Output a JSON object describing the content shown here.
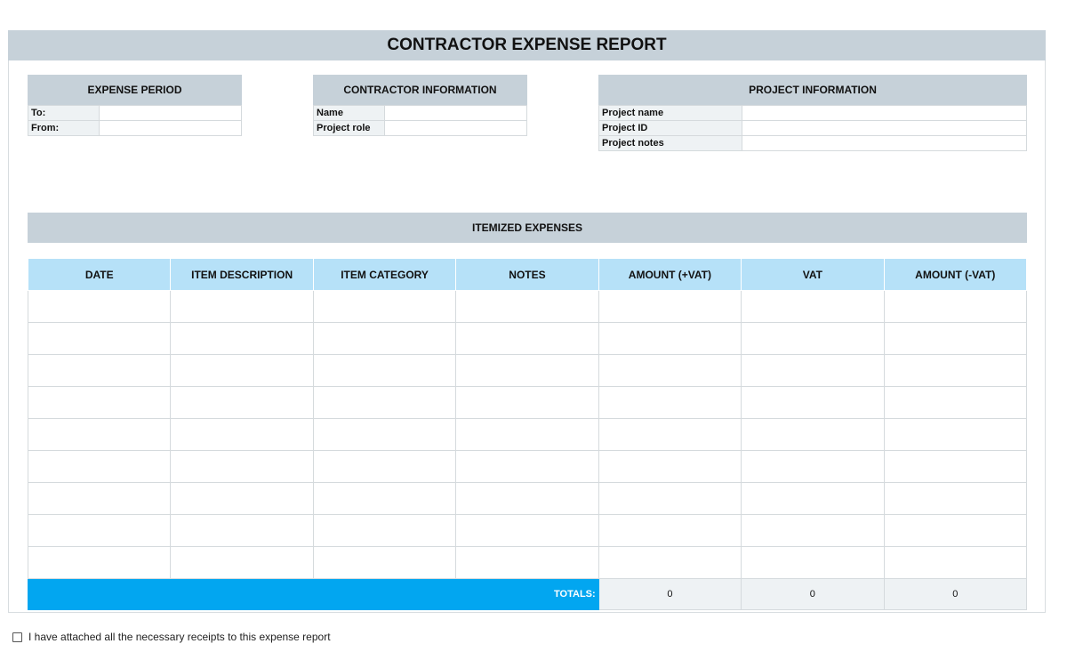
{
  "title": "CONTRACTOR EXPENSE REPORT",
  "expense_period": {
    "header": "EXPENSE PERIOD",
    "rows": [
      {
        "label": "To:",
        "value": ""
      },
      {
        "label": "From:",
        "value": ""
      }
    ]
  },
  "contractor_information": {
    "header": "CONTRACTOR INFORMATION",
    "rows": [
      {
        "label": "Name",
        "value": ""
      },
      {
        "label": "Project role",
        "value": ""
      }
    ]
  },
  "project_information": {
    "header": "PROJECT INFORMATION",
    "rows": [
      {
        "label": "Project name",
        "value": ""
      },
      {
        "label": "Project ID",
        "value": ""
      },
      {
        "label": "Project notes",
        "value": ""
      }
    ]
  },
  "itemized": {
    "title": "ITEMIZED EXPENSES",
    "columns": [
      "DATE",
      "ITEM DESCRIPTION",
      "ITEM CATEGORY",
      "NOTES",
      "AMOUNT (+VAT)",
      "VAT",
      "AMOUNT (-VAT)"
    ],
    "rows": [
      [
        "",
        "",
        "",
        "",
        "",
        "",
        ""
      ],
      [
        "",
        "",
        "",
        "",
        "",
        "",
        ""
      ],
      [
        "",
        "",
        "",
        "",
        "",
        "",
        ""
      ],
      [
        "",
        "",
        "",
        "",
        "",
        "",
        ""
      ],
      [
        "",
        "",
        "",
        "",
        "",
        "",
        ""
      ],
      [
        "",
        "",
        "",
        "",
        "",
        "",
        ""
      ],
      [
        "",
        "",
        "",
        "",
        "",
        "",
        ""
      ],
      [
        "",
        "",
        "",
        "",
        "",
        "",
        ""
      ],
      [
        "",
        "",
        "",
        "",
        "",
        "",
        ""
      ]
    ],
    "totals_label": "TOTALS:",
    "totals": {
      "amount_plus_vat": "0",
      "vat": "0",
      "amount_minus_vat": "0"
    }
  },
  "receipt_checkbox": {
    "label": "I have attached all the necessary receipts to this expense report",
    "checked": false
  },
  "colors": {
    "section_header": "#c6d1d9",
    "column_header": "#b6e1f8",
    "totals_bar": "#02a6f0",
    "label_cell": "#eef2f4"
  }
}
